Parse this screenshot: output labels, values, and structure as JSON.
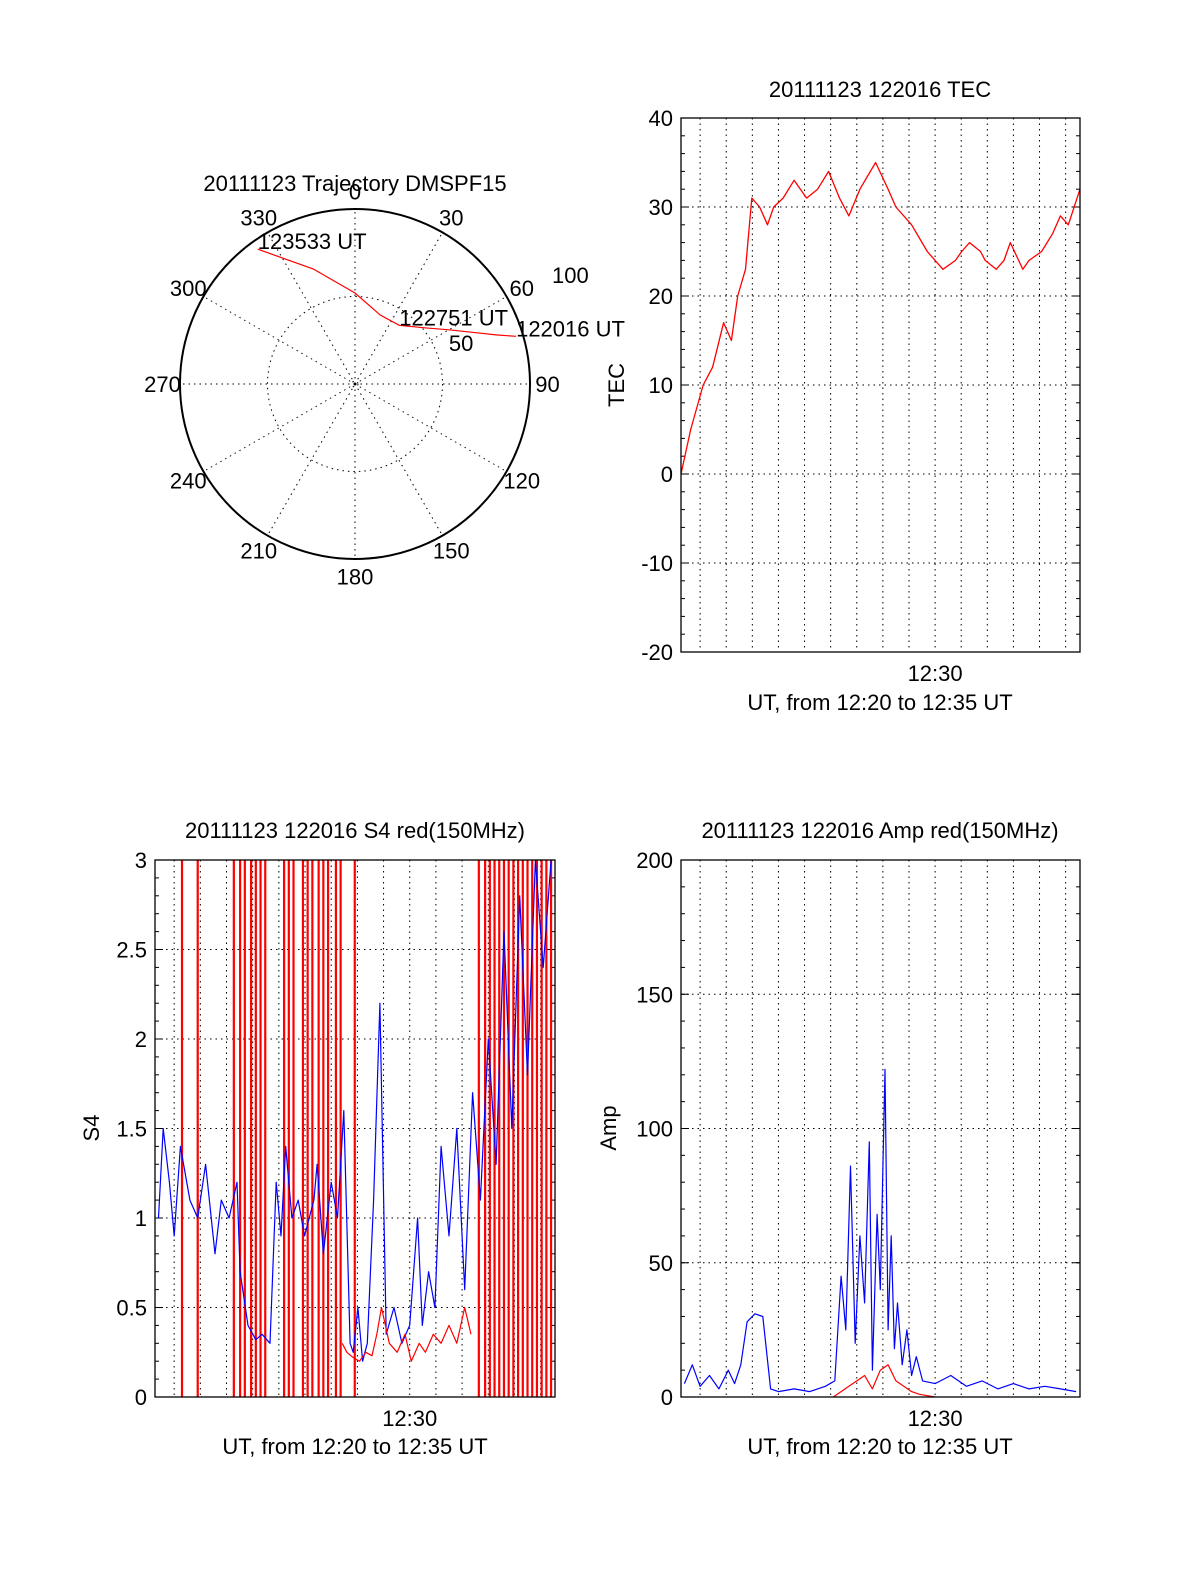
{
  "colors": {
    "red": "#ff0000",
    "blue": "#0000ff"
  },
  "chart_data": [
    {
      "type": "polar",
      "title": "20111123 Trajectory DMSPF15",
      "angle_labels": [
        "0",
        "30",
        "60",
        "90",
        "120",
        "150",
        "180",
        "210",
        "240",
        "270",
        "300",
        "330"
      ],
      "radius_labels": [
        "50",
        "100"
      ],
      "rlim": [
        0,
        100
      ],
      "grid": true,
      "series": [
        {
          "color": "red",
          "points": [
            [
              -35.8,
              95
            ],
            [
              -20,
              70
            ],
            [
              0,
              52
            ],
            [
              20,
              42
            ],
            [
              37,
              42
            ],
            [
              51,
              51
            ],
            [
              60,
              62
            ],
            [
              67,
              75
            ],
            [
              71,
              86
            ],
            [
              73.5,
              96
            ]
          ]
        }
      ],
      "annotations": [
        {
          "text": "123533 UT",
          "theta": -35.8,
          "r": 95
        },
        {
          "text": "122751 UT",
          "theta": 37,
          "r": 42
        },
        {
          "text": "122016 UT",
          "theta": 73.5,
          "r": 96
        }
      ]
    },
    {
      "type": "line",
      "title": "20111123 122016 TEC",
      "ylabel": "TEC",
      "xlabel": "UT, from 12:20 to 12:35 UT",
      "xlim": [
        12.3378,
        12.5925
      ],
      "ylim": [
        -20,
        40
      ],
      "yticks": [
        "-20",
        "-10",
        "0",
        "10",
        "20",
        "30",
        "40"
      ],
      "xtick_label": {
        "x": 12.5,
        "text": "12:30"
      },
      "grid": true,
      "series": [
        {
          "color": "red",
          "x": [
            12.3378,
            12.344,
            12.352,
            12.358,
            12.365,
            12.37,
            12.374,
            12.379,
            12.383,
            12.388,
            12.393,
            12.397,
            12.403,
            12.41,
            12.418,
            12.425,
            12.432,
            12.439,
            12.445,
            12.452,
            12.462,
            12.47,
            12.475,
            12.485,
            12.495,
            12.5,
            12.505,
            12.513,
            12.517,
            12.522,
            12.529,
            12.532,
            12.539,
            12.544,
            12.548,
            12.556,
            12.56,
            12.568,
            12.575,
            12.58,
            12.585,
            12.5925
          ],
          "y": [
            0,
            5,
            10,
            12,
            17,
            15,
            20,
            23,
            31,
            30,
            28,
            30,
            31,
            33,
            31,
            32,
            34,
            31,
            29,
            32,
            35,
            32,
            30,
            28,
            25,
            24,
            23,
            24,
            25,
            26,
            25,
            24,
            23,
            24,
            26,
            23,
            24,
            25,
            27,
            29,
            28,
            32
          ]
        }
      ]
    },
    {
      "type": "line",
      "title": "20111123 122016 S4 red(150MHz)",
      "ylabel": "S4",
      "xlabel": "UT, from 12:20 to 12:35 UT",
      "xlim": [
        12.3378,
        12.5925
      ],
      "ylim": [
        0,
        3
      ],
      "yticks": [
        "0",
        "0.5",
        "1",
        "1.5",
        "2",
        "2.5",
        "3"
      ],
      "xtick_label": {
        "x": 12.5,
        "text": "12:30"
      },
      "grid": true,
      "series": [
        {
          "color": "blue",
          "x": [
            12.34,
            12.343,
            12.347,
            12.35,
            12.354,
            12.36,
            12.365,
            12.37,
            12.376,
            12.38,
            12.385,
            12.39,
            12.392,
            12.397,
            12.402,
            12.406,
            12.411,
            12.415,
            12.418,
            12.421,
            12.425,
            12.429,
            12.433,
            12.436,
            12.439,
            12.441,
            12.445,
            12.45,
            12.454,
            12.458,
            12.462,
            12.464,
            12.467,
            12.47,
            12.473,
            12.477,
            12.481,
            12.485,
            12.49,
            12.495,
            12.5,
            12.505,
            12.508,
            12.512,
            12.516,
            12.52,
            12.525,
            12.53,
            12.535,
            12.54,
            12.545,
            12.55,
            12.555,
            12.56,
            12.565,
            12.57,
            12.575,
            12.58,
            12.585,
            12.59
          ],
          "y": [
            1.0,
            1.5,
            1.2,
            0.9,
            1.4,
            1.1,
            1.0,
            1.3,
            0.8,
            1.1,
            1.0,
            1.2,
            0.7,
            0.4,
            0.32,
            0.35,
            0.3,
            1.2,
            0.9,
            1.4,
            1.0,
            1.1,
            0.9,
            1.0,
            1.1,
            1.3,
            0.8,
            1.2,
            1.0,
            1.6,
            0.3,
            0.25,
            0.5,
            0.2,
            0.3,
            1.1,
            2.2,
            0.35,
            0.5,
            0.3,
            0.4,
            1.0,
            0.4,
            0.7,
            0.5,
            1.4,
            0.9,
            1.5,
            0.6,
            1.7,
            1.1,
            2.0,
            1.3,
            2.6,
            1.5,
            2.8,
            1.8,
            3.0,
            2.4,
            3.0
          ]
        },
        {
          "color": "red",
          "x": [
            12.457,
            12.46,
            12.464,
            12.468,
            12.472,
            12.476,
            12.479,
            12.482,
            12.487,
            12.492,
            12.497,
            12.501,
            12.506,
            12.51,
            12.515,
            12.52,
            12.525,
            12.53,
            12.535,
            12.539
          ],
          "y": [
            0.3,
            0.25,
            0.22,
            0.2,
            0.25,
            0.23,
            0.35,
            0.5,
            0.3,
            0.25,
            0.35,
            0.2,
            0.3,
            0.25,
            0.35,
            0.3,
            0.4,
            0.3,
            0.5,
            0.35
          ]
        }
      ],
      "red_spikes_x": [
        12.355,
        12.365,
        12.388,
        12.392,
        12.395,
        12.399,
        12.402,
        12.405,
        12.408,
        12.42,
        12.423,
        12.426,
        12.432,
        12.435,
        12.438,
        12.442,
        12.445,
        12.448,
        12.453,
        12.456,
        12.465,
        12.544,
        12.548,
        12.551,
        12.554,
        12.557,
        12.56,
        12.563,
        12.566,
        12.569,
        12.572,
        12.575,
        12.578,
        12.581,
        12.584,
        12.587,
        12.59
      ]
    },
    {
      "type": "line",
      "title": "20111123 122016 Amp red(150MHz)",
      "ylabel": "Amp",
      "xlabel": "UT, from 12:20 to 12:35 UT",
      "xlim": [
        12.3378,
        12.5925
      ],
      "ylim": [
        0,
        200
      ],
      "yticks": [
        "0",
        "50",
        "100",
        "150",
        "200"
      ],
      "xtick_label": {
        "x": 12.5,
        "text": "12:30"
      },
      "grid": true,
      "series": [
        {
          "color": "blue",
          "x": [
            12.34,
            12.345,
            12.35,
            12.356,
            12.362,
            12.368,
            12.372,
            12.376,
            12.38,
            12.385,
            12.39,
            12.395,
            12.4,
            12.41,
            12.42,
            12.43,
            12.436,
            12.44,
            12.443,
            12.446,
            12.449,
            12.452,
            12.455,
            12.458,
            12.46,
            12.463,
            12.465,
            12.468,
            12.47,
            12.472,
            12.474,
            12.476,
            12.479,
            12.482,
            12.485,
            12.488,
            12.492,
            12.5,
            12.51,
            12.52,
            12.53,
            12.54,
            12.55,
            12.56,
            12.57,
            12.58,
            12.59
          ],
          "y": [
            5,
            12,
            4,
            8,
            3,
            10,
            5,
            12,
            28,
            31,
            30,
            3,
            2,
            3,
            2,
            4,
            6,
            45,
            25,
            86,
            20,
            60,
            35,
            95,
            10,
            68,
            40,
            122,
            25,
            60,
            18,
            35,
            12,
            25,
            8,
            15,
            6,
            5,
            8,
            4,
            6,
            3,
            5,
            3,
            4,
            3,
            2
          ]
        },
        {
          "color": "red",
          "x": [
            12.435,
            12.44,
            12.445,
            12.45,
            12.455,
            12.46,
            12.465,
            12.47,
            12.475,
            12.48,
            12.485,
            12.49,
            12.5
          ],
          "y": [
            0,
            2,
            4,
            6,
            8,
            3,
            10,
            12,
            6,
            4,
            2,
            1,
            0
          ]
        }
      ]
    }
  ]
}
